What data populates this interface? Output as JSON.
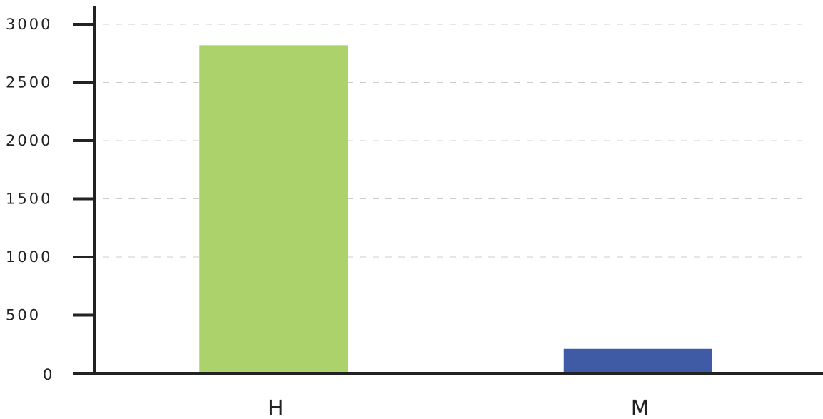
{
  "chart_data": {
    "type": "bar",
    "categories": [
      "H",
      "M"
    ],
    "values": [
      2820,
      210
    ],
    "colors": [
      "#abd26b",
      "#3f5ba6"
    ],
    "title": "",
    "xlabel": "",
    "ylabel": "",
    "ylim": [
      0,
      3000
    ],
    "yticks": [
      0,
      500,
      1000,
      1500,
      2000,
      2500,
      3000
    ],
    "ytick_labels": [
      "0",
      "500",
      "1000",
      "1500",
      "2000",
      "2500",
      "3000"
    ],
    "grid": true,
    "legend": "none",
    "axis_color": "#222222",
    "grid_color": "#cccccc"
  }
}
